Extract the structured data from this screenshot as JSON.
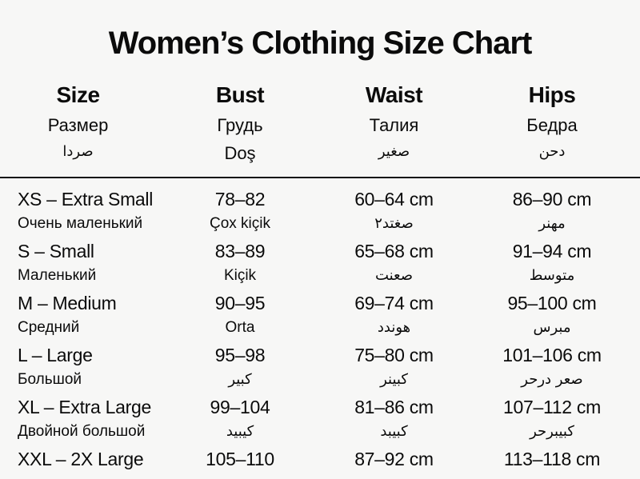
{
  "title": "Women’s Clothing Size Chart",
  "header": {
    "columns": [
      {
        "line1": "Size",
        "line2": "Размер",
        "line3": "صردا"
      },
      {
        "line1": "Bust",
        "line2": "Грудь",
        "line3": "Doş"
      },
      {
        "line1": "Waist",
        "line2": "Талия",
        "line3": "صغير"
      },
      {
        "line1": "Hips",
        "line2": "Бедра",
        "line3": "دحن"
      }
    ]
  },
  "rows": [
    {
      "size": "XS – Extra Small",
      "size2": "Очень маленький",
      "bust": "78–82",
      "bust2": "Çox kiçik",
      "waist": "60–64 cm",
      "waist2": "صغتد٢",
      "hips": "86–90 cm",
      "hips2": "مهنر"
    },
    {
      "size": "S – Small",
      "size2": "Маленький",
      "bust": "83–89",
      "bust2": "Kiçik",
      "waist": "65–68 cm",
      "waist2": "صعنت",
      "hips": "91–94 cm",
      "hips2": "متوسط"
    },
    {
      "size": "M – Medium",
      "size2": "Средний",
      "bust": "90–95",
      "bust2": "Orta",
      "waist": "69–74 cm",
      "waist2": "هوندد",
      "hips": "95–100 cm",
      "hips2": "مبرس"
    },
    {
      "size": "L – Large",
      "size2": "Большой",
      "bust": "95–98",
      "bust2": "كبير",
      "waist": "75–80 cm",
      "waist2": "كبينر",
      "hips": "101–106 cm",
      "hips2": "صعر درحر"
    },
    {
      "size": "XL – Extra Large",
      "size2": "Двойной большой",
      "bust": "99–104",
      "bust2": "كيبيد",
      "waist": "81–86 cm",
      "waist2": "كبيبد",
      "hips": "107–112 cm",
      "hips2": "كبيبرحر"
    },
    {
      "size": "XXL – 2X Large",
      "bust": "105–110",
      "waist": "87–92 cm",
      "hips": "113–118 cm"
    }
  ]
}
